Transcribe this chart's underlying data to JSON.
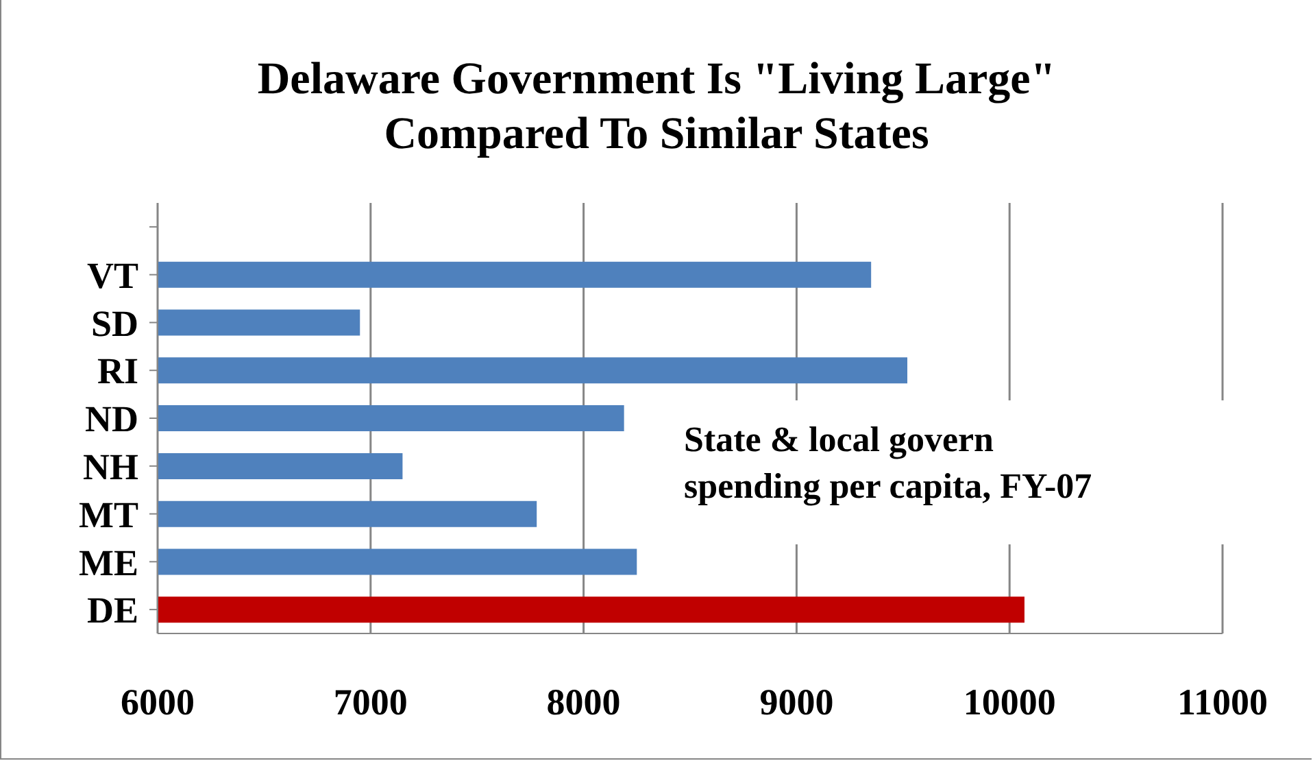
{
  "chart_data": {
    "type": "bar",
    "orientation": "horizontal",
    "title": "Delaware Government Is \"Living Large\"\nCompared To Similar States",
    "categories": [
      null,
      "VT",
      "SD",
      "RI",
      "ND",
      "NH",
      "MT",
      "ME",
      "DE"
    ],
    "values": [
      null,
      9350,
      6950,
      9520,
      8190,
      7150,
      7780,
      8250,
      10070
    ],
    "colors": [
      "#4f81bd",
      "#4f81bd",
      "#4f81bd",
      "#4f81bd",
      "#4f81bd",
      "#4f81bd",
      "#4f81bd",
      "#4f81bd",
      "#c00000"
    ],
    "xlim": [
      6000,
      11000
    ],
    "xticks": [
      6000,
      7000,
      8000,
      9000,
      10000,
      11000
    ],
    "grid": "x",
    "annotations": [
      "State & local govern spending per capita, FY-07"
    ]
  }
}
